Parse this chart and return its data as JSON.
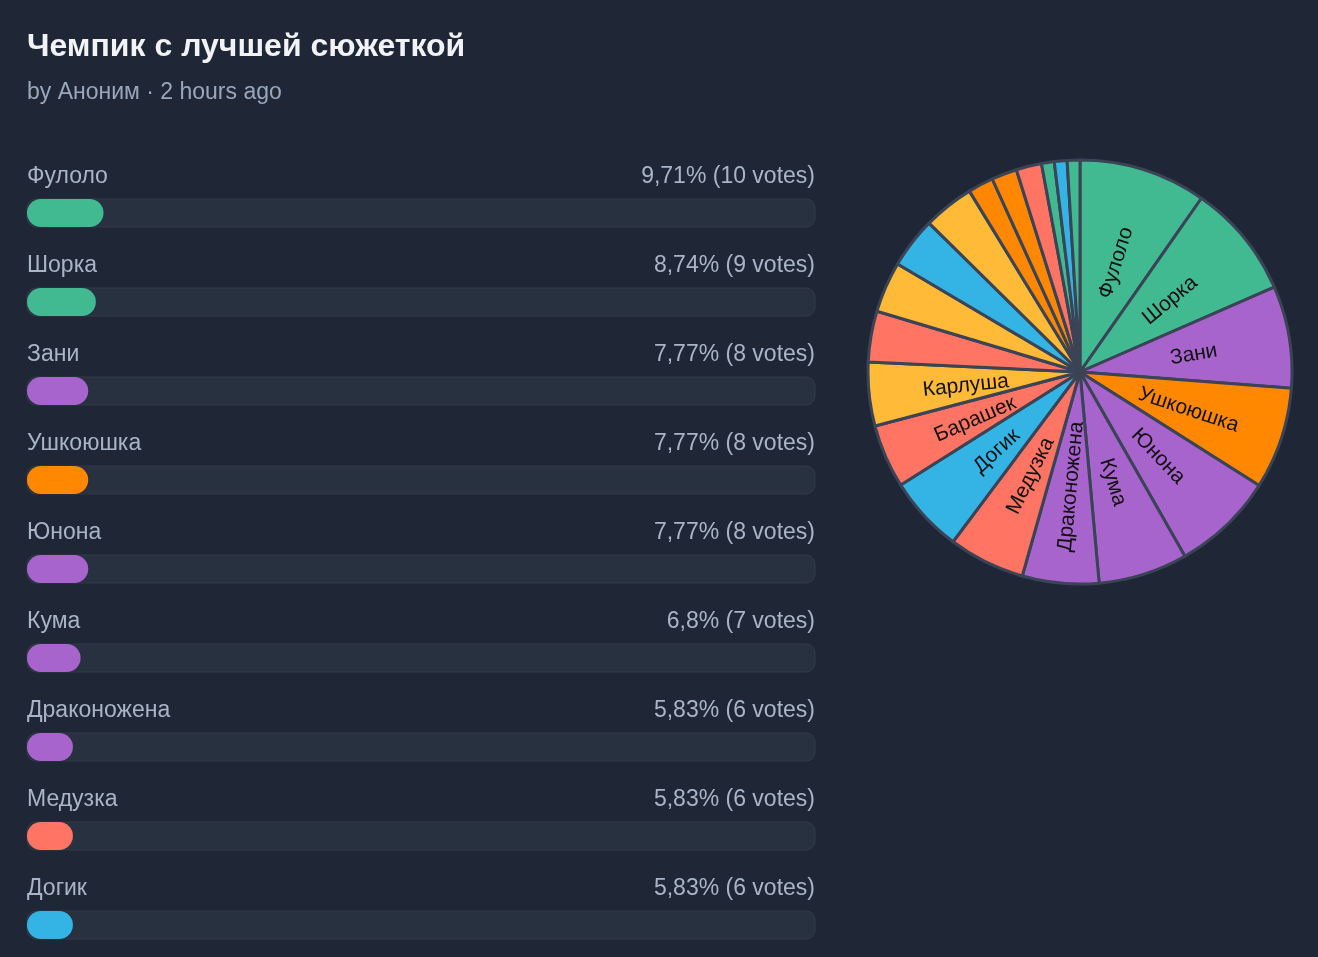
{
  "chart_data": [
    {
      "type": "bar",
      "orientation": "horizontal",
      "title": "Чемпик с лучшей сюжеткой",
      "subtitle": "by Аноним · 2 hours ago",
      "categories": [
        "Фулоло",
        "Шорка",
        "Зани",
        "Ушкоюшка",
        "Юнона",
        "Кума",
        "Драконожена",
        "Медузка",
        "Догик"
      ],
      "values": [
        9.71,
        8.74,
        7.77,
        7.77,
        7.77,
        6.8,
        5.83,
        5.83,
        5.83
      ],
      "colors": [
        "#41b991",
        "#41b991",
        "#a764cc",
        "#ff8800",
        "#a764cc",
        "#a764cc",
        "#a764cc",
        "#ff7462",
        "#34b4e5"
      ],
      "value_labels": [
        "9,71% (10 votes)",
        "8,74% (9 votes)",
        "7,77% (8 votes)",
        "7,77% (8 votes)",
        "7,77% (8 votes)",
        "6,8% (7 votes)",
        "5,83% (6 votes)",
        "5,83% (6 votes)",
        "5,83% (6 votes)"
      ],
      "xlim": [
        0,
        100
      ],
      "tick_labels": "y"
    },
    {
      "type": "pie",
      "categories": [
        "Фулоло",
        "Шорка",
        "Зани",
        "Ушкоюшка",
        "Юнона",
        "Кума",
        "Драконожена",
        "Медузка",
        "Догик",
        "Барашек",
        "Карлуша",
        null,
        null,
        null,
        null,
        null,
        null,
        null,
        null,
        null,
        null
      ],
      "values": [
        9.71,
        8.74,
        7.77,
        7.77,
        7.77,
        6.8,
        5.83,
        5.83,
        5.83,
        4.85,
        4.85,
        3.88,
        3.88,
        3.88,
        3.88,
        1.94,
        1.94,
        1.94,
        0.97,
        0.97,
        0.97
      ],
      "colors": [
        "#41b991",
        "#41b991",
        "#a764cc",
        "#ff8800",
        "#a764cc",
        "#a764cc",
        "#a764cc",
        "#ff7462",
        "#34b4e5",
        "#ff7462",
        "#ffba38",
        "#ff7462",
        "#ffba38",
        "#34b4e5",
        "#ffba38",
        "#ff8800",
        "#ff8800",
        "#ff7462",
        "#41b991",
        "#34b4e5",
        "#41b991"
      ]
    }
  ]
}
